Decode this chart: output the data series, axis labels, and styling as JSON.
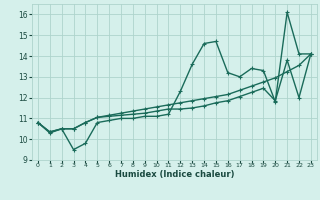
{
  "xlabel": "Humidex (Indice chaleur)",
  "xlim": [
    -0.5,
    23.5
  ],
  "ylim": [
    9,
    16.5
  ],
  "yticks": [
    9,
    10,
    11,
    12,
    13,
    14,
    15,
    16
  ],
  "xticks": [
    0,
    1,
    2,
    3,
    4,
    5,
    6,
    7,
    8,
    9,
    10,
    11,
    12,
    13,
    14,
    15,
    16,
    17,
    18,
    19,
    20,
    21,
    22,
    23
  ],
  "background_color": "#d5f0eb",
  "grid_color": "#aed4cc",
  "line_color": "#1a6b5a",
  "line1_y": [
    10.8,
    10.3,
    10.5,
    9.5,
    9.8,
    10.8,
    10.9,
    11.0,
    11.0,
    11.1,
    11.1,
    11.2,
    12.3,
    13.6,
    14.6,
    14.7,
    13.2,
    13.0,
    13.4,
    13.3,
    11.8,
    16.1,
    14.1,
    14.1
  ],
  "line2_y": [
    10.8,
    10.35,
    10.5,
    10.5,
    10.8,
    11.05,
    11.1,
    11.15,
    11.2,
    11.25,
    11.35,
    11.45,
    11.45,
    11.5,
    11.6,
    11.75,
    11.85,
    12.05,
    12.25,
    12.45,
    11.85,
    13.8,
    12.0,
    14.1
  ],
  "line3_y": [
    10.8,
    10.35,
    10.5,
    10.5,
    10.8,
    11.05,
    11.15,
    11.25,
    11.35,
    11.45,
    11.55,
    11.65,
    11.75,
    11.85,
    11.95,
    12.05,
    12.15,
    12.35,
    12.55,
    12.75,
    12.95,
    13.25,
    13.55,
    14.1
  ],
  "markersize": 3,
  "linewidth": 1.0
}
